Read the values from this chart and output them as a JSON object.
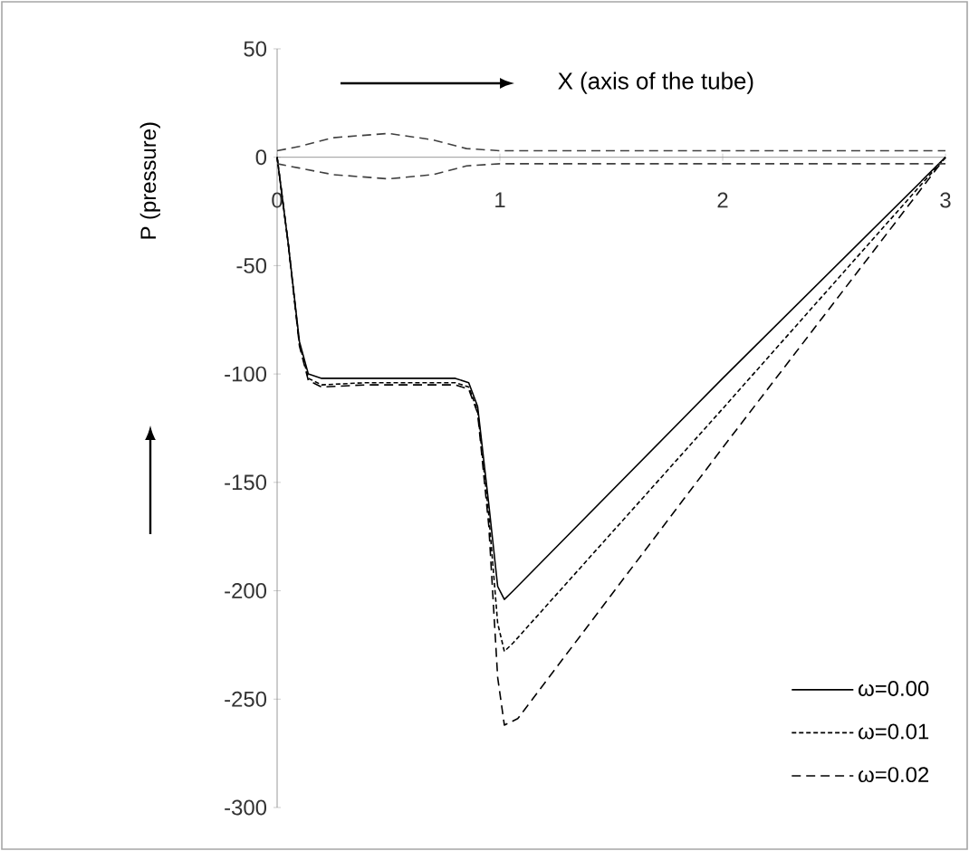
{
  "chart_data": {
    "type": "line",
    "xlabel": "X (axis of the tube)",
    "ylabel": "P (pressure)",
    "xlim": [
      0,
      3
    ],
    "ylim": [
      -300,
      50
    ],
    "xticks": [
      0,
      1,
      2,
      3
    ],
    "yticks": [
      -300,
      -250,
      -200,
      -150,
      -100,
      -50,
      0,
      50
    ],
    "grid": false,
    "legend": "bottom right",
    "marker": "none",
    "series": [
      {
        "name": "ω=0.00",
        "color": "#000000",
        "line_style": "solid",
        "x": [
          0,
          0.05,
          0.1,
          0.14,
          0.2,
          0.4,
          0.6,
          0.8,
          0.86,
          0.9,
          0.95,
          0.99,
          1.02,
          1.06,
          2,
          3
        ],
        "values": [
          0,
          -40,
          -85,
          -100,
          -102,
          -102,
          -102,
          -102,
          -104,
          -115,
          -160,
          -198,
          -204,
          -200,
          -102,
          0
        ]
      },
      {
        "name": "ω=0.01",
        "color": "#000000",
        "line_style": "dotted",
        "x": [
          0,
          0.05,
          0.1,
          0.14,
          0.2,
          0.4,
          0.6,
          0.8,
          0.86,
          0.9,
          0.95,
          0.99,
          1.02,
          1.06,
          2,
          3
        ],
        "values": [
          0,
          -40,
          -86,
          -102,
          -105,
          -104,
          -104,
          -104,
          -106,
          -117,
          -165,
          -215,
          -228,
          -224,
          -116,
          0
        ]
      },
      {
        "name": "ω=0.02",
        "color": "#000000",
        "line_style": "dashed",
        "x": [
          0,
          0.05,
          0.1,
          0.14,
          0.2,
          0.4,
          0.6,
          0.8,
          0.86,
          0.9,
          0.95,
          0.99,
          1.02,
          1.08,
          2,
          3
        ],
        "values": [
          0,
          -40,
          -87,
          -103,
          -106,
          -105,
          -105,
          -105,
          -107,
          -118,
          -170,
          -240,
          -262,
          -259,
          -134,
          0
        ]
      },
      {
        "color": "#404040",
        "line_style": "dashed",
        "x": [
          0,
          0.1,
          0.25,
          0.5,
          0.7,
          0.85,
          1,
          3
        ],
        "values": [
          3,
          5,
          9,
          11,
          8,
          4,
          3,
          3
        ]
      },
      {
        "color": "#404040",
        "line_style": "dashed",
        "x": [
          0,
          0.1,
          0.25,
          0.5,
          0.7,
          0.85,
          1,
          3
        ],
        "values": [
          -3,
          -5,
          -8,
          -10,
          -8,
          -4,
          -3,
          -3
        ]
      }
    ]
  }
}
